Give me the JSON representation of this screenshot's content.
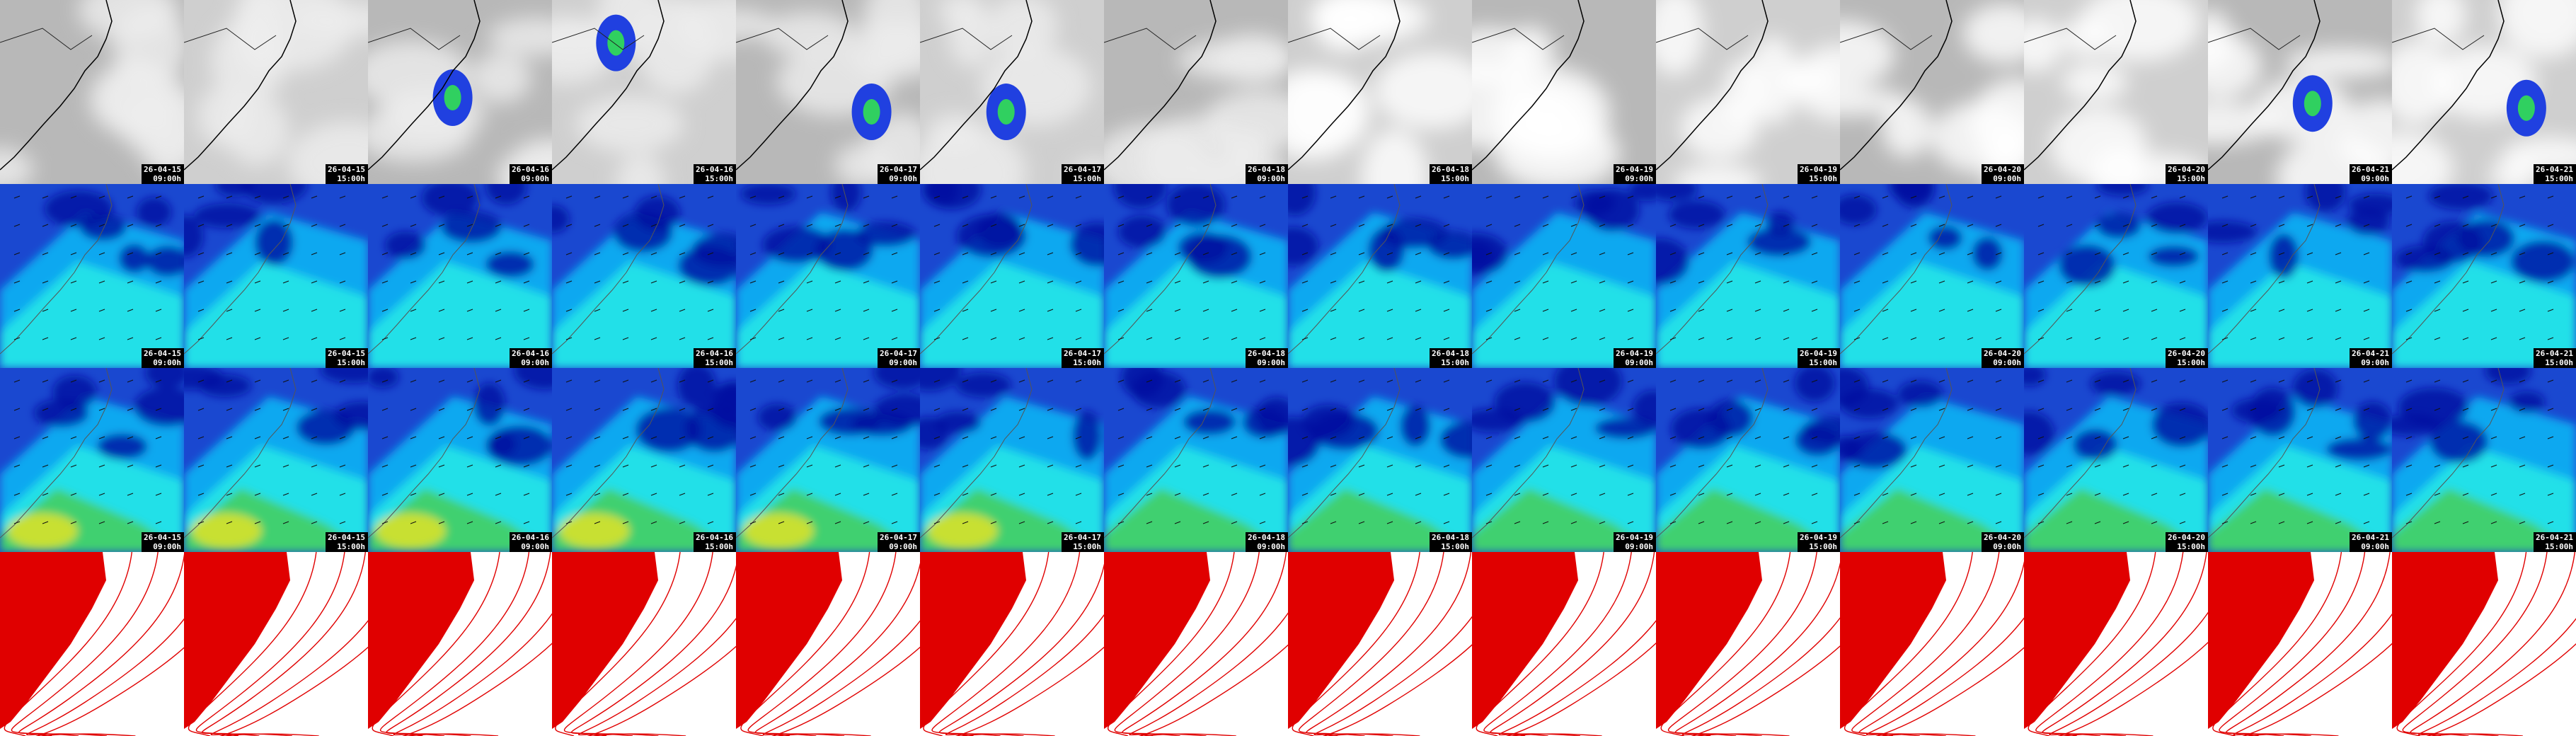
{
  "frames": [
    {
      "date": "26-04-15",
      "time": "09:00h"
    },
    {
      "date": "26-04-15",
      "time": "15:00h"
    },
    {
      "date": "26-04-16",
      "time": "09:00h"
    },
    {
      "date": "26-04-16",
      "time": "15:00h"
    },
    {
      "date": "26-04-17",
      "time": "09:00h"
    },
    {
      "date": "26-04-17",
      "time": "15:00h"
    },
    {
      "date": "26-04-18",
      "time": "09:00h"
    },
    {
      "date": "26-04-18",
      "time": "15:00h"
    },
    {
      "date": "26-04-19",
      "time": "09:00h"
    },
    {
      "date": "26-04-19",
      "time": "15:00h"
    },
    {
      "date": "26-04-20",
      "time": "09:00h"
    },
    {
      "date": "26-04-20",
      "time": "15:00h"
    },
    {
      "date": "26-04-21",
      "time": "09:00h"
    },
    {
      "date": "26-04-21",
      "time": "15:00h"
    }
  ]
}
